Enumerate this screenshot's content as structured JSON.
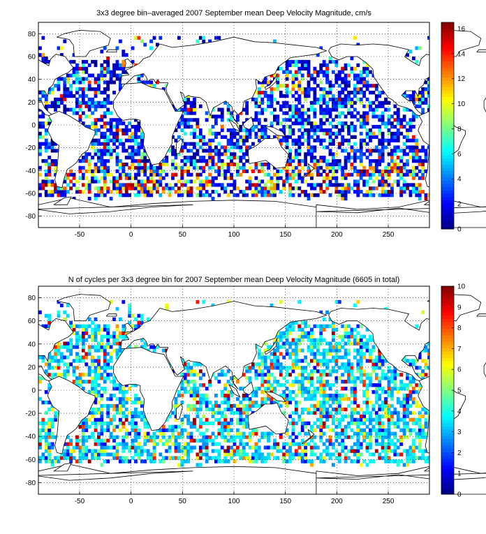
{
  "chart_data": [
    {
      "type": "heatmap",
      "title": "3x3 degree bin–averaged 2007 September mean Deep Velocity Magnitude, cm/s",
      "xlim": [
        -90,
        290
      ],
      "ylim": [
        -90,
        90
      ],
      "xticks": [
        -50,
        0,
        50,
        100,
        150,
        200,
        250
      ],
      "yticks": [
        80,
        60,
        40,
        20,
        0,
        -20,
        -40,
        -60,
        -80
      ],
      "bin_size_deg": 3,
      "grid": "dotted",
      "colorbar": {
        "min": 0,
        "max": 16.5,
        "ticks": [
          0,
          2,
          4,
          6,
          8,
          10,
          12,
          14,
          16
        ],
        "colormap": "jet"
      },
      "seed": 11,
      "mode": "velocity"
    },
    {
      "type": "heatmap",
      "title": "N of cycles per 3x3 degree bin for 2007 September mean Deep Velocity Magnitude (6605 in total)",
      "xlim": [
        -90,
        290
      ],
      "ylim": [
        -90,
        90
      ],
      "xticks": [
        -50,
        0,
        50,
        100,
        150,
        200,
        250
      ],
      "yticks": [
        80,
        60,
        40,
        20,
        0,
        -20,
        -40,
        -60,
        -80
      ],
      "bin_size_deg": 3,
      "grid": "dotted",
      "colorbar": {
        "min": 0,
        "max": 10,
        "ticks": [
          0,
          1,
          2,
          3,
          4,
          5,
          6,
          7,
          8,
          9,
          10
        ],
        "colormap": "jet"
      },
      "seed": 23,
      "mode": "count"
    }
  ]
}
